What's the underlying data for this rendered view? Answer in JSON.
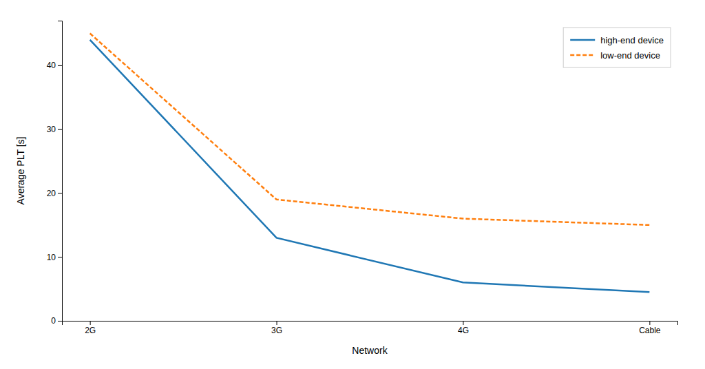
{
  "chart_data": {
    "type": "line",
    "categories": [
      "2G",
      "3G",
      "4G",
      "Cable"
    ],
    "series": [
      {
        "name": "high-end device",
        "color": "#1f77b4",
        "line_style": "solid",
        "values": [
          44,
          13,
          6,
          4.5
        ]
      },
      {
        "name": "low-end device",
        "color": "#ff7f0e",
        "line_style": "dashed",
        "values": [
          45,
          19,
          16,
          15
        ]
      }
    ],
    "xlabel": "Network",
    "ylabel": "Average PLT [s]",
    "ylim": [
      0,
      47
    ],
    "yticks": [
      0,
      10,
      20,
      30,
      40
    ],
    "grid": false,
    "legend": "upper right"
  }
}
